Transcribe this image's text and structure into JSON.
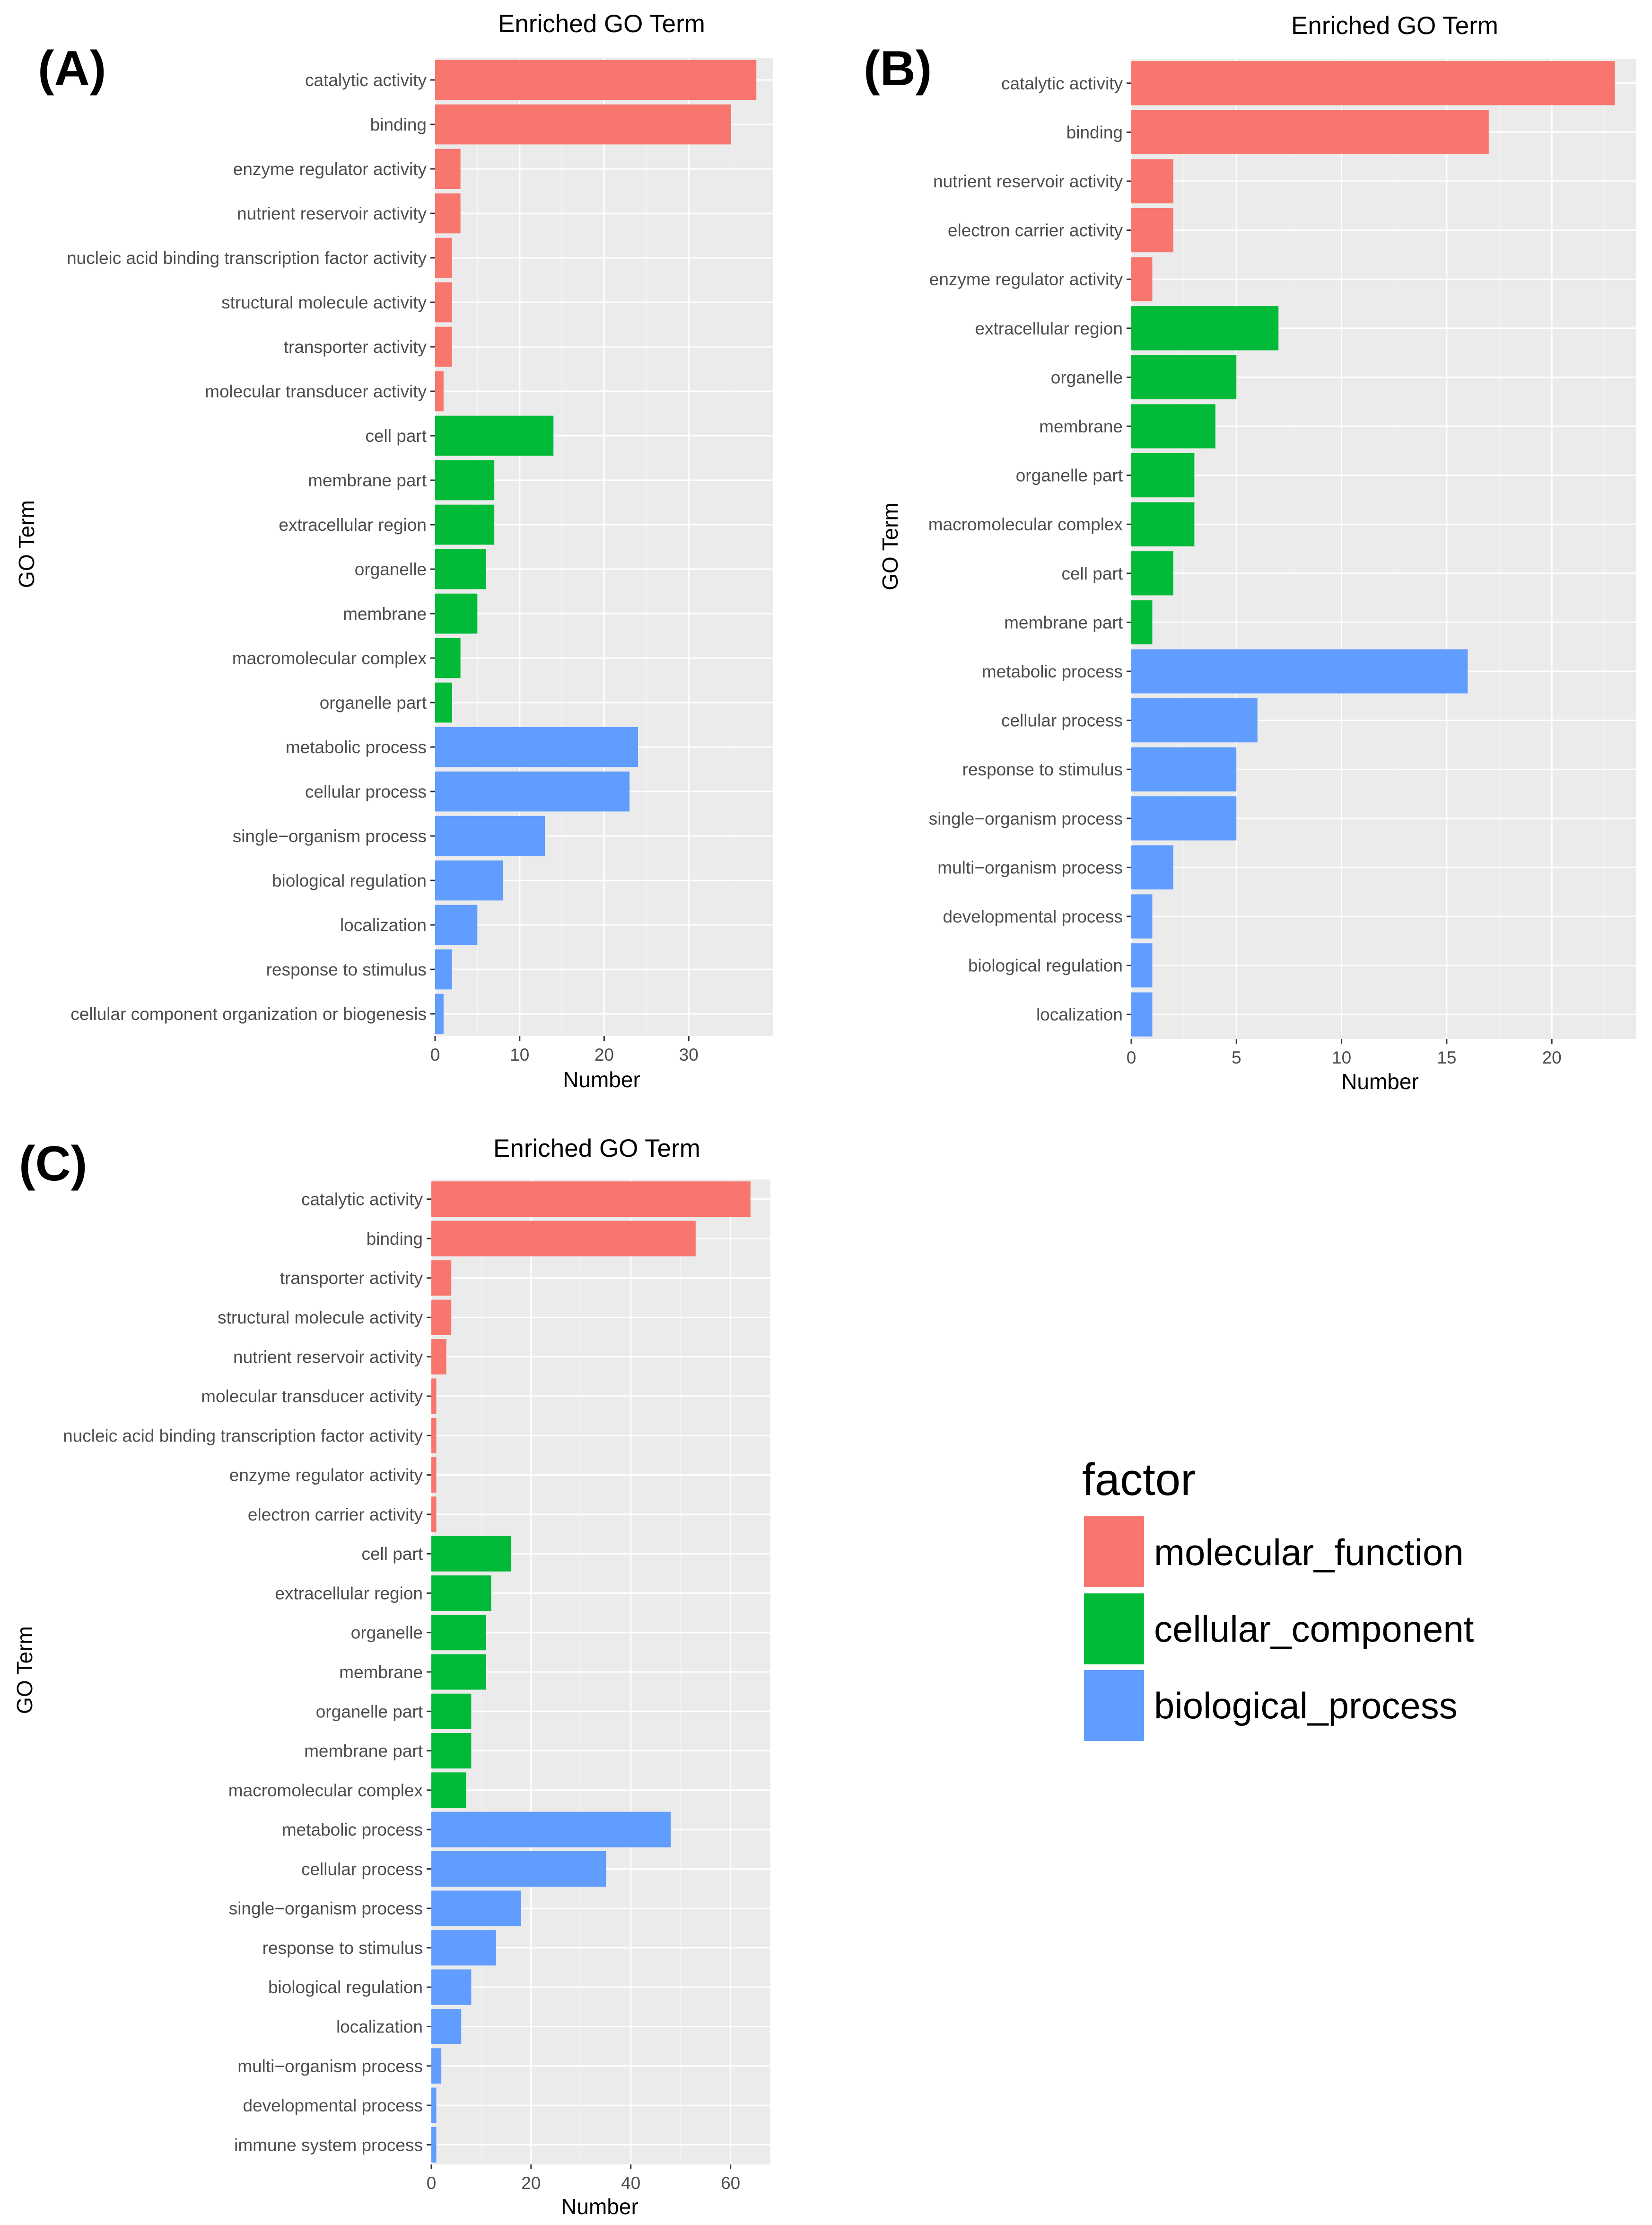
{
  "colors": {
    "molecular_function": "#F8766D",
    "cellular_component": "#00BA38",
    "biological_process": "#619CFF"
  },
  "legend": {
    "title": "factor",
    "items": [
      {
        "label": "molecular_function",
        "color": "#F8766D"
      },
      {
        "label": "cellular_component",
        "color": "#00BA38"
      },
      {
        "label": "biological_process",
        "color": "#619CFF"
      }
    ]
  },
  "chart_data": [
    {
      "type": "bar",
      "orientation": "horizontal",
      "panel": "(A)",
      "title": "Enriched GO Term",
      "xlabel": "Number",
      "ylabel": "GO Term",
      "xlim": [
        0,
        40
      ],
      "xticks": [
        0,
        10,
        20,
        30
      ],
      "categories": [
        "catalytic activity",
        "binding",
        "enzyme regulator activity",
        "nutrient reservoir activity",
        "nucleic acid binding transcription factor activity",
        "structural molecule activity",
        "transporter activity",
        "molecular transducer activity",
        "cell part",
        "membrane part",
        "extracellular region",
        "organelle",
        "membrane",
        "macromolecular complex",
        "organelle part",
        "metabolic process",
        "cellular process",
        "single−organism process",
        "biological regulation",
        "localization",
        "response to stimulus",
        "cellular component organization or biogenesis"
      ],
      "values": [
        38,
        35,
        3,
        3,
        2,
        2,
        2,
        1,
        14,
        7,
        7,
        6,
        5,
        3,
        2,
        24,
        23,
        13,
        8,
        5,
        2,
        1
      ],
      "groups": [
        "molecular_function",
        "molecular_function",
        "molecular_function",
        "molecular_function",
        "molecular_function",
        "molecular_function",
        "molecular_function",
        "molecular_function",
        "cellular_component",
        "cellular_component",
        "cellular_component",
        "cellular_component",
        "cellular_component",
        "cellular_component",
        "cellular_component",
        "biological_process",
        "biological_process",
        "biological_process",
        "biological_process",
        "biological_process",
        "biological_process",
        "biological_process"
      ]
    },
    {
      "type": "bar",
      "orientation": "horizontal",
      "panel": "(B)",
      "title": "Enriched GO Term",
      "xlabel": "Number",
      "ylabel": "GO Term",
      "xlim": [
        0,
        24
      ],
      "xticks": [
        0,
        5,
        10,
        15,
        20
      ],
      "categories": [
        "catalytic activity",
        "binding",
        "nutrient reservoir activity",
        "electron carrier activity",
        "enzyme regulator activity",
        "extracellular region",
        "organelle",
        "membrane",
        "organelle part",
        "macromolecular complex",
        "cell part",
        "membrane part",
        "metabolic process",
        "cellular process",
        "response to stimulus",
        "single−organism process",
        "multi−organism process",
        "developmental process",
        "biological regulation",
        "localization"
      ],
      "values": [
        23,
        17,
        2,
        2,
        1,
        7,
        5,
        4,
        3,
        3,
        2,
        1,
        16,
        6,
        5,
        5,
        2,
        1,
        1,
        1
      ],
      "groups": [
        "molecular_function",
        "molecular_function",
        "molecular_function",
        "molecular_function",
        "molecular_function",
        "cellular_component",
        "cellular_component",
        "cellular_component",
        "cellular_component",
        "cellular_component",
        "cellular_component",
        "cellular_component",
        "biological_process",
        "biological_process",
        "biological_process",
        "biological_process",
        "biological_process",
        "biological_process",
        "biological_process",
        "biological_process"
      ]
    },
    {
      "type": "bar",
      "orientation": "horizontal",
      "panel": "(C)",
      "title": "Enriched GO Term",
      "xlabel": "Number",
      "ylabel": "GO Term",
      "xlim": [
        0,
        68
      ],
      "xticks": [
        0,
        20,
        40,
        60
      ],
      "categories": [
        "catalytic activity",
        "binding",
        "transporter activity",
        "structural molecule activity",
        "nutrient reservoir activity",
        "molecular transducer activity",
        "nucleic acid binding transcription factor activity",
        "enzyme regulator activity",
        "electron carrier activity",
        "cell part",
        "extracellular region",
        "organelle",
        "membrane",
        "organelle part",
        "membrane part",
        "macromolecular complex",
        "metabolic process",
        "cellular process",
        "single−organism process",
        "response to stimulus",
        "biological regulation",
        "localization",
        "multi−organism process",
        "developmental process",
        "immune system process"
      ],
      "values": [
        64,
        53,
        4,
        4,
        3,
        1,
        1,
        1,
        1,
        16,
        12,
        11,
        11,
        8,
        8,
        7,
        48,
        35,
        18,
        13,
        8,
        6,
        2,
        1,
        1
      ],
      "groups": [
        "molecular_function",
        "molecular_function",
        "molecular_function",
        "molecular_function",
        "molecular_function",
        "molecular_function",
        "molecular_function",
        "molecular_function",
        "molecular_function",
        "cellular_component",
        "cellular_component",
        "cellular_component",
        "cellular_component",
        "cellular_component",
        "cellular_component",
        "cellular_component",
        "biological_process",
        "biological_process",
        "biological_process",
        "biological_process",
        "biological_process",
        "biological_process",
        "biological_process",
        "biological_process",
        "biological_process"
      ]
    }
  ]
}
